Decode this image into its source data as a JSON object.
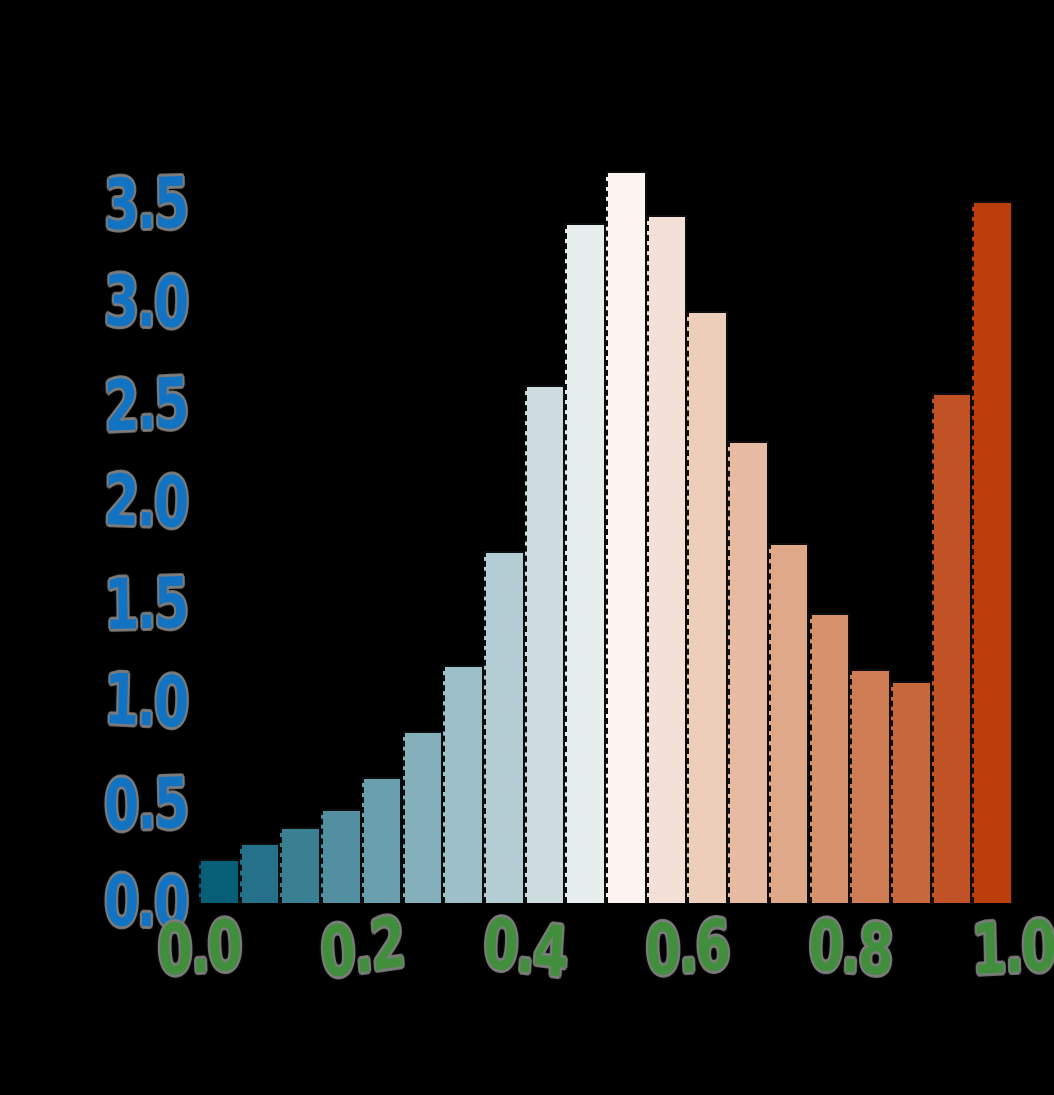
{
  "figure": {
    "background_color": "#000000",
    "title": ""
  },
  "style": {
    "ytick_color": "#1173c2",
    "xtick_color": "#418f3d",
    "tick_halo_color": "#7d7d7d",
    "bar_edge_color": "#0d0d0d",
    "colormap_start": "#065f77",
    "colormap_mid": "#fdf4f1",
    "colormap_end": "#bc3e0d"
  },
  "chart_data": {
    "type": "bar",
    "subtype": "histogram",
    "title": "",
    "xlabel": "",
    "ylabel": "",
    "grid": false,
    "legend": null,
    "xlim": [
      0.0,
      1.0
    ],
    "ylim": [
      0.0,
      3.8
    ],
    "bin_width": 0.05,
    "bin_edges": [
      0.0,
      0.05,
      0.1,
      0.15,
      0.2,
      0.25,
      0.3,
      0.35,
      0.4,
      0.45,
      0.5,
      0.55,
      0.6,
      0.65,
      0.7,
      0.75,
      0.8,
      0.85,
      0.9,
      0.95,
      1.0
    ],
    "values": [
      0.22,
      0.3,
      0.38,
      0.47,
      0.63,
      0.86,
      1.19,
      1.76,
      2.59,
      3.4,
      3.66,
      3.44,
      2.96,
      2.31,
      1.8,
      1.45,
      1.17,
      1.11,
      2.55,
      3.51
    ],
    "bar_colors": [
      "#065f77",
      "#26718a",
      "#3b7f92",
      "#5290a1",
      "#6aa0ae",
      "#84b0bc",
      "#9cbfc8",
      "#b4cdd4",
      "#ccdcdf",
      "#e6efee",
      "#fdf4f1",
      "#f3e0d6",
      "#edcebb",
      "#e6bba1",
      "#dfa888",
      "#d6926d",
      "#cf7c54",
      "#c7673d",
      "#c05225",
      "#bc3e0d"
    ],
    "x_tick_values": [
      0.0,
      0.2,
      0.4,
      0.6,
      0.8,
      1.0
    ],
    "x_tick_labels": [
      "0.0",
      "0.2",
      "0.4",
      "0.6",
      "0.8",
      "1.0"
    ],
    "y_tick_values": [
      0.0,
      0.5,
      1.0,
      1.5,
      2.0,
      2.5,
      3.0,
      3.5
    ],
    "y_tick_labels": [
      "0.0",
      "0.5",
      "1.0",
      "1.5",
      "2.0",
      "2.5",
      "3.0",
      "3.5"
    ],
    "legend_position": null
  }
}
